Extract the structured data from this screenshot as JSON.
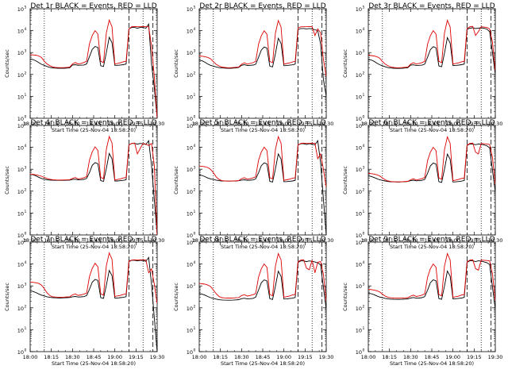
{
  "chart_data": {
    "type": "line",
    "layout": "3x3 grid",
    "y_scale": "log",
    "ylim": [
      1,
      100000
    ],
    "y_tick_labels": [
      "10",
      "10",
      "10",
      "10",
      "10",
      "10"
    ],
    "y_tick_exponents": [
      "0",
      "1",
      "2",
      "3",
      "4",
      "5"
    ],
    "x_tick_labels": [
      "18:00",
      "18:15",
      "18:30",
      "18:45",
      "19:00",
      "19:15",
      "19:30"
    ],
    "xlim": [
      "18:00",
      "19:30"
    ],
    "ylabel": "Counts/sec",
    "xlabel": "Start Time (25-Nov-04 18:58:20)",
    "series_colors": {
      "events": "#000000",
      "lld": "#dd0000"
    },
    "marker_lines": [
      {
        "x": "18:10",
        "style": "dotted"
      },
      {
        "x": "19:10",
        "style": "dashed"
      },
      {
        "x": "19:20",
        "style": "dotted"
      },
      {
        "x": "19:27",
        "style": "dashed"
      }
    ],
    "x_samples": [
      "18:00",
      "18:02",
      "18:04",
      "18:06",
      "18:08",
      "18:10",
      "18:12",
      "18:14",
      "18:16",
      "18:18",
      "18:20",
      "18:22",
      "18:24",
      "18:26",
      "18:28",
      "18:30",
      "18:32",
      "18:34",
      "18:36",
      "18:38",
      "18:40",
      "18:42",
      "18:44",
      "18:46",
      "18:48",
      "18:50",
      "18:52",
      "18:54",
      "18:56",
      "18:58",
      "19:00",
      "19:02",
      "19:04",
      "19:06",
      "19:08",
      "19:10",
      "19:12",
      "19:14",
      "19:16",
      "19:18",
      "19:20",
      "19:22",
      "19:24",
      "19:26",
      "19:28",
      "19:30"
    ],
    "panels": [
      {
        "title": "Det 1r BLACK = Events, RED = LLD",
        "series": [
          {
            "values": [
              500,
              480,
              420,
              350,
              290,
              260,
              230,
              210,
              200,
              195,
              190,
              190,
              190,
              195,
              200,
              270,
              280,
              260,
              265,
              270,
              300,
              650,
              1400,
              1900,
              1700,
              250,
              230,
              1000,
              5000,
              2800,
              260,
              260,
              270,
              280,
              300,
              12000,
              14000,
              14000,
              13000,
              14000,
              14000,
              13000,
              20000,
              300,
              25,
              1
            ]
          },
          {
            "values": [
              800,
              780,
              760,
              700,
              600,
              400,
              300,
              250,
              220,
              210,
              205,
              205,
              205,
              210,
              215,
              300,
              350,
              300,
              320,
              350,
              400,
              2500,
              6000,
              10000,
              7000,
              400,
              350,
              8000,
              30000,
              15000,
              300,
              320,
              340,
              380,
              400,
              12000,
              15000,
              15500,
              15000,
              15000,
              15500,
              15000,
              15000,
              2000,
              80,
              1
            ]
          }
        ]
      },
      {
        "title": "Det 2r BLACK = Events, RED = LLD",
        "series": [
          {
            "values": [
              450,
              420,
              360,
              300,
              260,
              240,
              220,
              205,
              198,
              195,
              190,
              190,
              195,
              200,
              210,
              260,
              280,
              255,
              260,
              268,
              290,
              600,
              1300,
              1800,
              1600,
              240,
              220,
              900,
              4500,
              2600,
              250,
              255,
              265,
              275,
              295,
              11000,
              12500,
              12500,
              12000,
              12500,
              12000,
              11000,
              10000,
              2500,
              60,
              10
            ]
          },
          {
            "values": [
              700,
              680,
              650,
              600,
              520,
              380,
              290,
              245,
              218,
              208,
              204,
              204,
              206,
              212,
              218,
              290,
              340,
              295,
              315,
              345,
              395,
              2400,
              5800,
              9800,
              6800,
              390,
              345,
              7800,
              29000,
              14500,
              295,
              315,
              335,
              375,
              395,
              13000,
              15000,
              15000,
              15000,
              15500,
              15000,
              6000,
              12000,
              8000,
              500,
              80
            ]
          }
        ]
      },
      {
        "title": "Det 3r BLACK = Events, RED = LLD",
        "series": [
          {
            "values": [
              480,
              460,
              400,
              330,
              280,
              250,
              225,
              205,
              196,
              192,
              188,
              188,
              190,
              196,
              204,
              265,
              275,
              258,
              262,
              266,
              295,
              620,
              1350,
              1850,
              1650,
              245,
              225,
              950,
              4800,
              2700,
              255,
              258,
              268,
              278,
              298,
              11500,
              13000,
              13500,
              12500,
              13000,
              13500,
              12800,
              11800,
              9000,
              1000,
              100
            ]
          },
          {
            "values": [
              750,
              730,
              700,
              650,
              560,
              390,
              295,
              248,
              219,
              209,
              204,
              204,
              206,
              212,
              218,
              295,
              345,
              298,
              318,
              348,
              398,
              2450,
              5900,
              9900,
              6900,
              395,
              348,
              7900,
              29500,
              14800,
              298,
              318,
              338,
              378,
              398,
              12500,
              15000,
              15500,
              6000,
              9000,
              15000,
              14500,
              14000,
              12000,
              3000,
              150
            ]
          }
        ]
      },
      {
        "title": "Det 4r BLACK = Events, RED = LLD",
        "series": [
          {
            "values": [
              600,
              560,
              500,
              430,
              380,
              350,
              330,
              320,
              315,
              312,
              310,
              310,
              312,
              315,
              320,
              340,
              350,
              330,
              335,
              345,
              380,
              700,
              1500,
              2000,
              1800,
              300,
              280,
              1100,
              5200,
              3000,
              290,
              290,
              300,
              310,
              330,
              13000,
              15000,
              15000,
              14000,
              15000,
              14500,
              13500,
              20000,
              1500,
              40,
              1
            ]
          },
          {
            "values": [
              600,
              580,
              560,
              520,
              480,
              420,
              380,
              350,
              330,
              325,
              322,
              322,
              324,
              328,
              332,
              380,
              420,
              360,
              380,
              410,
              460,
              2600,
              6200,
              10500,
              7200,
              420,
              370,
              8200,
              31000,
              16000,
              320,
              340,
              360,
              400,
              420,
              13000,
              15000,
              15500,
              5000,
              9000,
              15000,
              14000,
              12000,
              15000,
              1500,
              1
            ]
          }
        ]
      },
      {
        "title": "Det 5r BLACK = Events, RED = LLD",
        "series": [
          {
            "values": [
              550,
              520,
              460,
              400,
              360,
              340,
              320,
              300,
              290,
              288,
              286,
              286,
              288,
              292,
              298,
              320,
              330,
              310,
              315,
              325,
              360,
              680,
              1450,
              1950,
              1750,
              280,
              260,
              1050,
              5000,
              2900,
              270,
              272,
              282,
              292,
              312,
              12500,
              14500,
              14500,
              13500,
              14500,
              14000,
              13000,
              20000,
              2000,
              45,
              1
            ]
          },
          {
            "values": [
              1400,
              1350,
              1300,
              1200,
              1000,
              700,
              450,
              340,
              300,
              292,
              288,
              288,
              290,
              296,
              302,
              370,
              410,
              350,
              370,
              400,
              450,
              2550,
              6100,
              10200,
              7100,
              410,
              360,
              8100,
              30500,
              15500,
              310,
              330,
              350,
              390,
              410,
              12800,
              15000,
              15500,
              15000,
              15200,
              15500,
              15000,
              3000,
              5000,
              1000,
              150
            ]
          }
        ]
      },
      {
        "title": "Det 6r BLACK = Events, RED = LLD",
        "series": [
          {
            "values": [
              500,
              470,
              420,
              370,
              330,
              310,
              290,
              275,
              268,
              265,
              262,
              262,
              265,
              270,
              276,
              300,
              315,
              295,
              300,
              310,
              345,
              660,
              1420,
              1920,
              1720,
              270,
              250,
              1020,
              4900,
              2850,
              262,
              265,
              275,
              285,
              305,
              12200,
              14200,
              14200,
              13200,
              14200,
              13800,
              12800,
              11800,
              9500,
              900,
              90
            ]
          },
          {
            "values": [
              650,
              630,
              600,
              560,
              500,
              400,
              330,
              290,
              275,
              270,
              266,
              266,
              268,
              274,
              280,
              330,
              370,
              320,
              340,
              370,
              420,
              2500,
              6000,
              10000,
              7000,
              400,
              350,
              8000,
              30000,
              15200,
              300,
              320,
              340,
              380,
              400,
              12600,
              15000,
              15500,
              6000,
              5000,
              15000,
              14600,
              14200,
              13500,
              3500,
              200
            ]
          }
        ]
      },
      {
        "title": "Det 7r BLACK = Events, RED = LLD",
        "series": [
          {
            "values": [
              600,
              560,
              500,
              430,
              380,
              350,
              320,
              300,
              290,
              286,
              282,
              282,
              285,
              290,
              296,
              320,
              330,
              310,
              315,
              325,
              360,
              700,
              1480,
              1980,
              1780,
              290,
              270,
              1080,
              5100,
              2950,
              280,
              282,
              292,
              302,
              322,
              12800,
              14800,
              14800,
              13800,
              14800,
              14300,
              13300,
              20000,
              1200,
              35,
              1
            ]
          },
          {
            "values": [
              1500,
              1450,
              1400,
              1300,
              1100,
              750,
              480,
              360,
              320,
              310,
              305,
              305,
              308,
              314,
              320,
              390,
              430,
              370,
              390,
              420,
              470,
              2650,
              6300,
              10800,
              7400,
              430,
              380,
              8400,
              32000,
              16500,
              330,
              350,
              370,
              410,
              430,
              13500,
              15000,
              15500,
              15000,
              15500,
              15500,
              15000,
              4000,
              6000,
              1200,
              150
            ]
          }
        ]
      },
      {
        "title": "Det 8r BLACK = Events, RED = LLD",
        "series": [
          {
            "values": [
              450,
              420,
              380,
              330,
              290,
              270,
              250,
              235,
              228,
              225,
              222,
              222,
              225,
              230,
              236,
              260,
              275,
              255,
              260,
              270,
              305,
              640,
              1380,
              1880,
              1680,
              260,
              240,
              980,
              4700,
              2750,
              252,
              255,
              265,
              275,
              295,
              11800,
              13800,
              13800,
              12800,
              13800,
              13300,
              12300,
              11300,
              9200,
              850,
              85
            ]
          },
          {
            "values": [
              1300,
              1250,
              1200,
              1100,
              950,
              650,
              440,
              330,
              290,
              284,
              280,
              280,
              282,
              288,
              294,
              360,
              400,
              345,
              365,
              395,
              445,
              2500,
              6000,
              10100,
              7050,
              405,
              355,
              8050,
              30200,
              15300,
              305,
              325,
              345,
              385,
              405,
              12700,
              15000,
              15500,
              6500,
              5500,
              15000,
              4000,
              12000,
              13000,
              3500,
              200
            ]
          }
        ]
      },
      {
        "title": "Det 9r BLACK = Events, RED = LLD",
        "series": [
          {
            "values": [
              470,
              440,
              400,
              350,
              310,
              290,
              270,
              255,
              248,
              245,
              242,
              242,
              245,
              250,
              256,
              280,
              295,
              275,
              280,
              290,
              325,
              650,
              1400,
              1900,
              1700,
              265,
              245,
              1000,
              4800,
              2800,
              257,
              260,
              270,
              280,
              300,
              12000,
              14000,
              14000,
              13000,
              14000,
              13500,
              12500,
              11500,
              9400,
              880,
              88
            ]
          },
          {
            "values": [
              700,
              680,
              650,
              600,
              540,
              420,
              340,
              300,
              285,
              280,
              276,
              276,
              278,
              284,
              290,
              340,
              380,
              330,
              350,
              380,
              430,
              2520,
              6050,
              10050,
              7020,
              402,
              352,
              8020,
              30100,
              15250,
              302,
              322,
              342,
              382,
              402,
              12650,
              15000,
              15500,
              6200,
              5200,
              15000,
              14800,
              14400,
              13800,
              3600,
              210
            ]
          }
        ]
      }
    ]
  }
}
